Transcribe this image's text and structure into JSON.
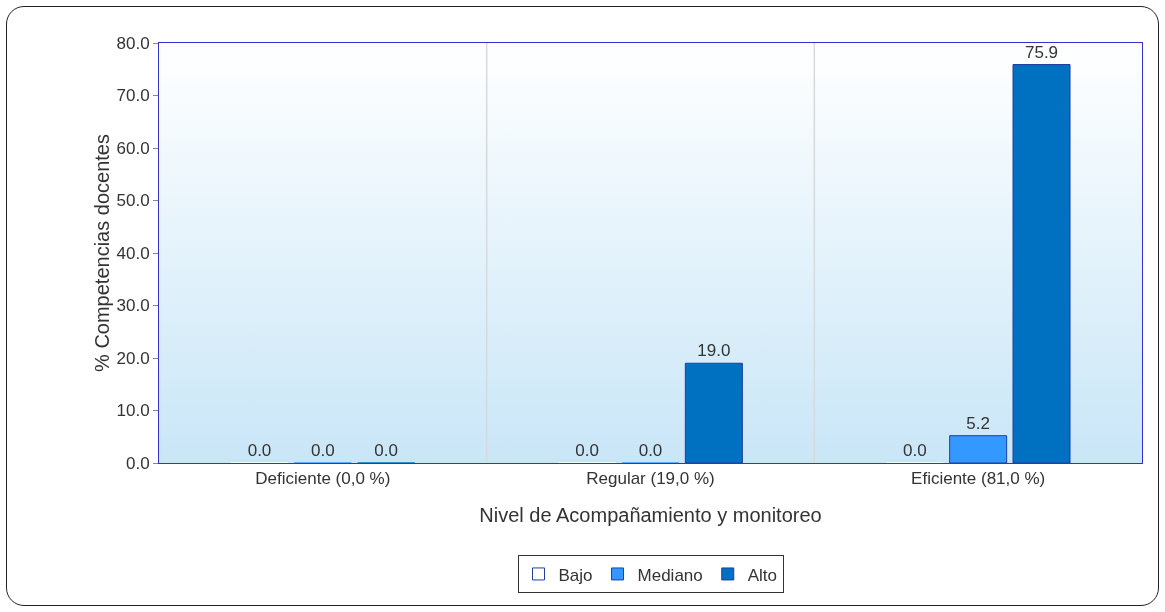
{
  "chart_data": {
    "type": "bar",
    "xlabel": "Nivel de Acompañamiento y monitoreo",
    "ylabel": "% Competencias docentes",
    "categories": [
      "Deficiente (0,0 %)",
      "Regular (19,0 %)",
      "Eficiente (81,0 %)"
    ],
    "series": [
      {
        "name": "Bajo",
        "color": "#ffffff",
        "values": [
          0.0,
          0.0,
          0.0
        ],
        "value_labels": [
          "0.0",
          "0.0",
          "0.0"
        ]
      },
      {
        "name": "Mediano",
        "color": "#3399ff",
        "values": [
          0.0,
          0.0,
          5.2
        ],
        "value_labels": [
          "0.0",
          "0.0",
          "5.2"
        ]
      },
      {
        "name": "Alto",
        "color": "#0070c0",
        "values": [
          0.0,
          19.0,
          75.9
        ],
        "value_labels": [
          "0.0",
          "19.0",
          "75.9"
        ]
      }
    ],
    "ylim": [
      0,
      80
    ],
    "yticks": [
      {
        "value": 0,
        "label": "0.0"
      },
      {
        "value": 10,
        "label": "10.0"
      },
      {
        "value": 20,
        "label": "20.0"
      },
      {
        "value": 30,
        "label": "30.0"
      },
      {
        "value": 40,
        "label": "40.0"
      },
      {
        "value": 50,
        "label": "50.0"
      },
      {
        "value": 60,
        "label": "60.0"
      },
      {
        "value": 70,
        "label": "70.0"
      },
      {
        "value": 80,
        "label": "80.0"
      }
    ],
    "grid": "x",
    "legend": "bottom"
  }
}
